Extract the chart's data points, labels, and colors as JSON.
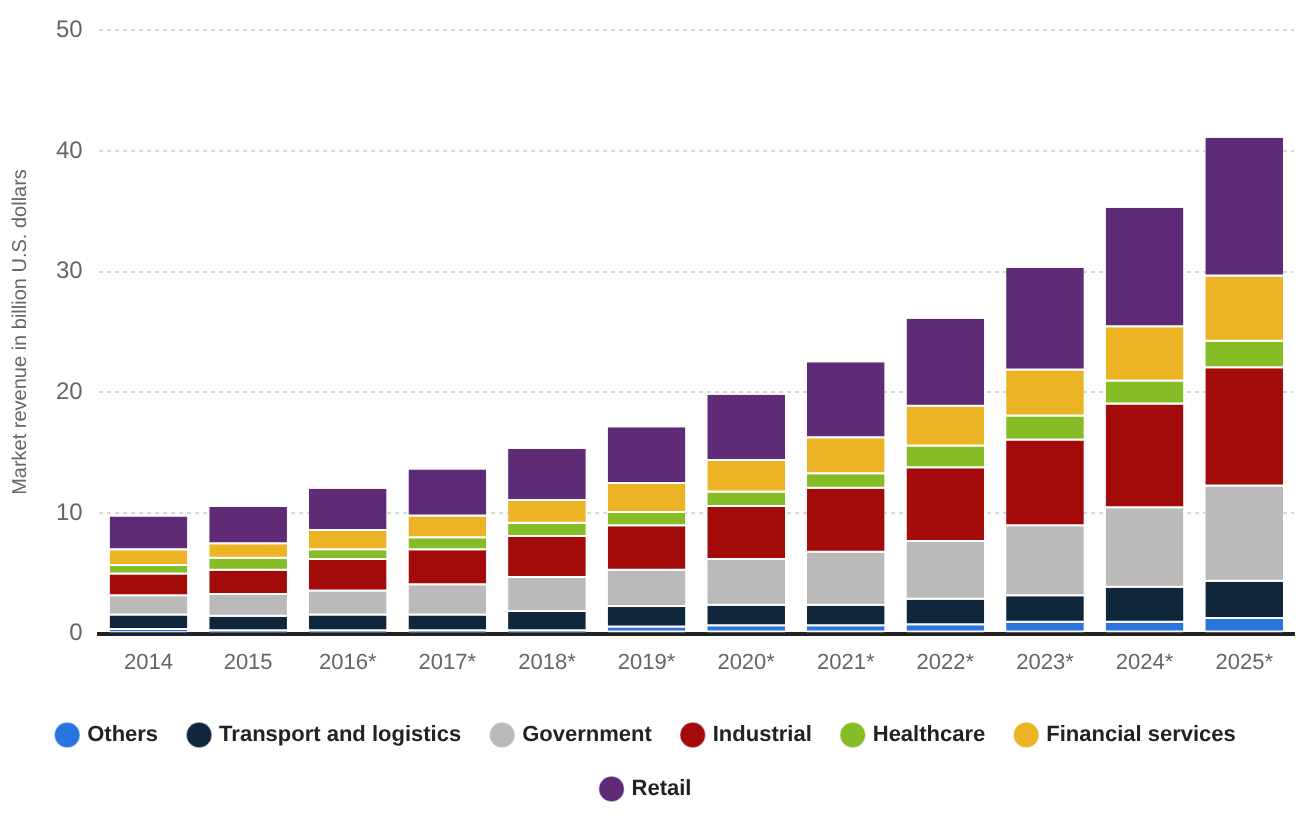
{
  "chart_data": {
    "type": "bar",
    "stacked": true,
    "ylabel": "Market revenue in billion U.S. dollars",
    "categories": [
      "2014",
      "2015",
      "2016*",
      "2017*",
      "2018*",
      "2019*",
      "2020*",
      "2021*",
      "2022*",
      "2023*",
      "2024*",
      "2025*"
    ],
    "series": [
      {
        "name": "Others",
        "color": "#2876dd",
        "values": [
          0.3,
          0.2,
          0.2,
          0.2,
          0.2,
          0.5,
          0.6,
          0.6,
          0.7,
          0.9,
          0.9,
          1.2
        ]
      },
      {
        "name": "Transport and logistics",
        "color": "#10263b",
        "values": [
          1.2,
          1.2,
          1.3,
          1.3,
          1.6,
          1.7,
          1.7,
          1.7,
          2.1,
          2.2,
          2.9,
          3.1
        ]
      },
      {
        "name": "Government",
        "color": "#bababa",
        "values": [
          1.6,
          1.8,
          2.0,
          2.5,
          2.8,
          3.0,
          3.8,
          4.4,
          4.8,
          5.8,
          6.6,
          7.9
        ]
      },
      {
        "name": "Industrial",
        "color": "#a30b0b",
        "values": [
          1.8,
          2.0,
          2.6,
          2.9,
          3.4,
          3.7,
          4.4,
          5.3,
          6.1,
          7.1,
          8.6,
          9.8
        ]
      },
      {
        "name": "Healthcare",
        "color": "#86bc25",
        "values": [
          0.7,
          1.0,
          0.8,
          1.0,
          1.1,
          1.1,
          1.2,
          1.2,
          1.8,
          2.0,
          1.9,
          2.2
        ]
      },
      {
        "name": "Financial services",
        "color": "#ecb424",
        "values": [
          1.3,
          1.2,
          1.6,
          1.8,
          1.9,
          2.4,
          2.6,
          3.0,
          3.3,
          3.8,
          4.5,
          5.4
        ]
      },
      {
        "name": "Retail",
        "color": "#5f2a76",
        "values": [
          2.8,
          3.1,
          3.5,
          3.9,
          4.3,
          4.7,
          5.5,
          6.3,
          7.3,
          8.5,
          9.9,
          11.5
        ]
      }
    ],
    "ylim": [
      0,
      50
    ],
    "yticks": [
      0,
      10,
      20,
      30,
      40,
      50
    ],
    "grid": "y",
    "legend": "bottom"
  }
}
